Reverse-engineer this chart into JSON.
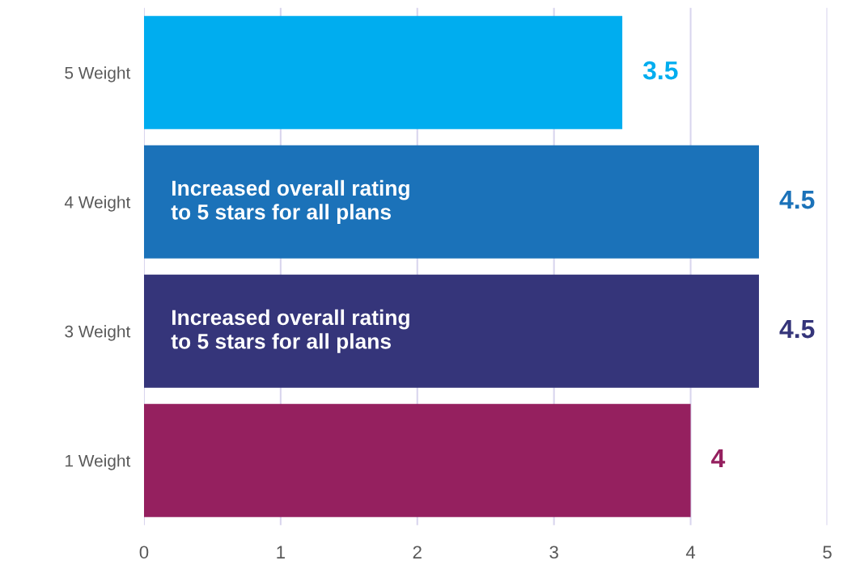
{
  "chart_data": {
    "type": "bar",
    "orientation": "horizontal",
    "categories": [
      "5 Weight",
      "4 Weight",
      "3 Weight",
      "1 Weight"
    ],
    "values": [
      3.5,
      4.5,
      4.5,
      4
    ],
    "colors": [
      "#00adef",
      "#1b72b9",
      "#35357a",
      "#95205f"
    ],
    "xlim": [
      0,
      5
    ],
    "xticks": [
      0,
      1,
      2,
      3,
      4,
      5
    ],
    "grid": "x",
    "data_labels": true,
    "annotations": [
      {
        "text": "Increased overall rating\nto 5 stars for all plans",
        "y": "4 Weight"
      },
      {
        "text": "Increased overall rating\nto 5 stars for all plans",
        "y": "3 Weight"
      }
    ]
  }
}
